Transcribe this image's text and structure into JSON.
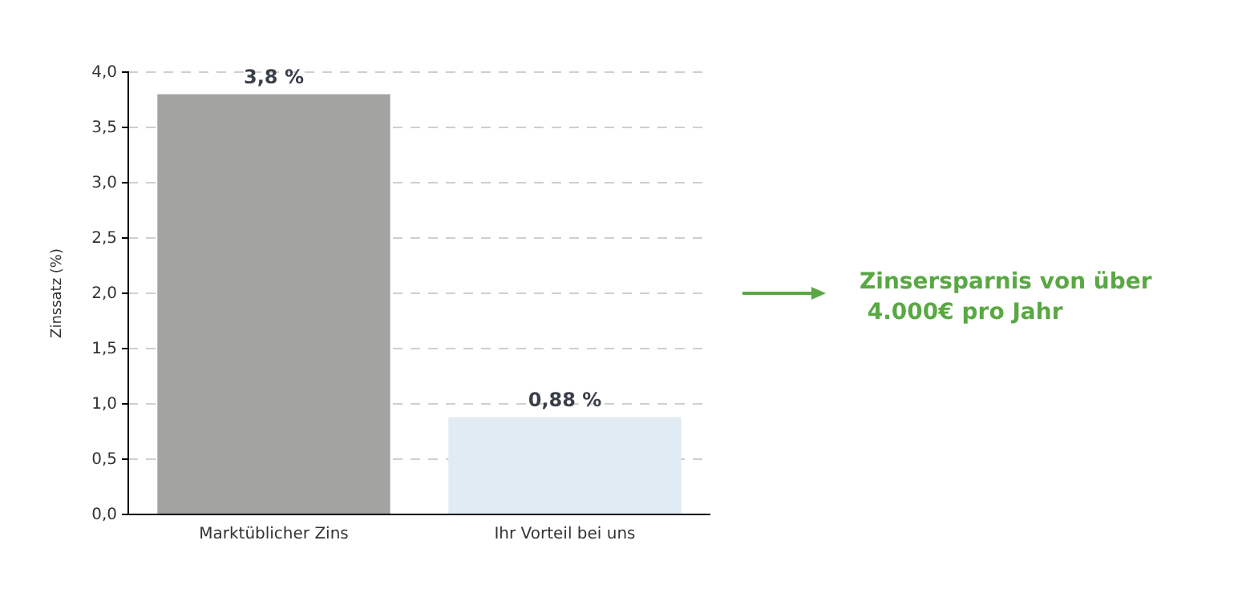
{
  "chart_data": {
    "type": "bar",
    "ylabel": "Zinssatz (%)",
    "categories": [
      "Marktüblicher Zins",
      "Ihr Vorteil bei uns"
    ],
    "values": [
      3.8,
      0.88
    ],
    "colors": [
      "#a3a3a2",
      "#e1ebf4"
    ],
    "value_labels": [
      "3,8 %",
      "0,88 %"
    ],
    "ylim": [
      0,
      4
    ],
    "yticks": [
      {
        "value": 0,
        "label": "0,0"
      },
      {
        "value": 0.5,
        "label": "0,5"
      },
      {
        "value": 1,
        "label": "1,0"
      },
      {
        "value": 1.5,
        "label": "1,5"
      },
      {
        "value": 2,
        "label": "2,0"
      },
      {
        "value": 2.5,
        "label": "2,5"
      },
      {
        "value": 3,
        "label": "3,0"
      },
      {
        "value": 3.5,
        "label": "3,5"
      },
      {
        "value": 4,
        "label": "4,0"
      }
    ],
    "grid": "y",
    "annotations": [
      "Zinsersparnis von über\n 4.000€ pro Jahr"
    ]
  }
}
